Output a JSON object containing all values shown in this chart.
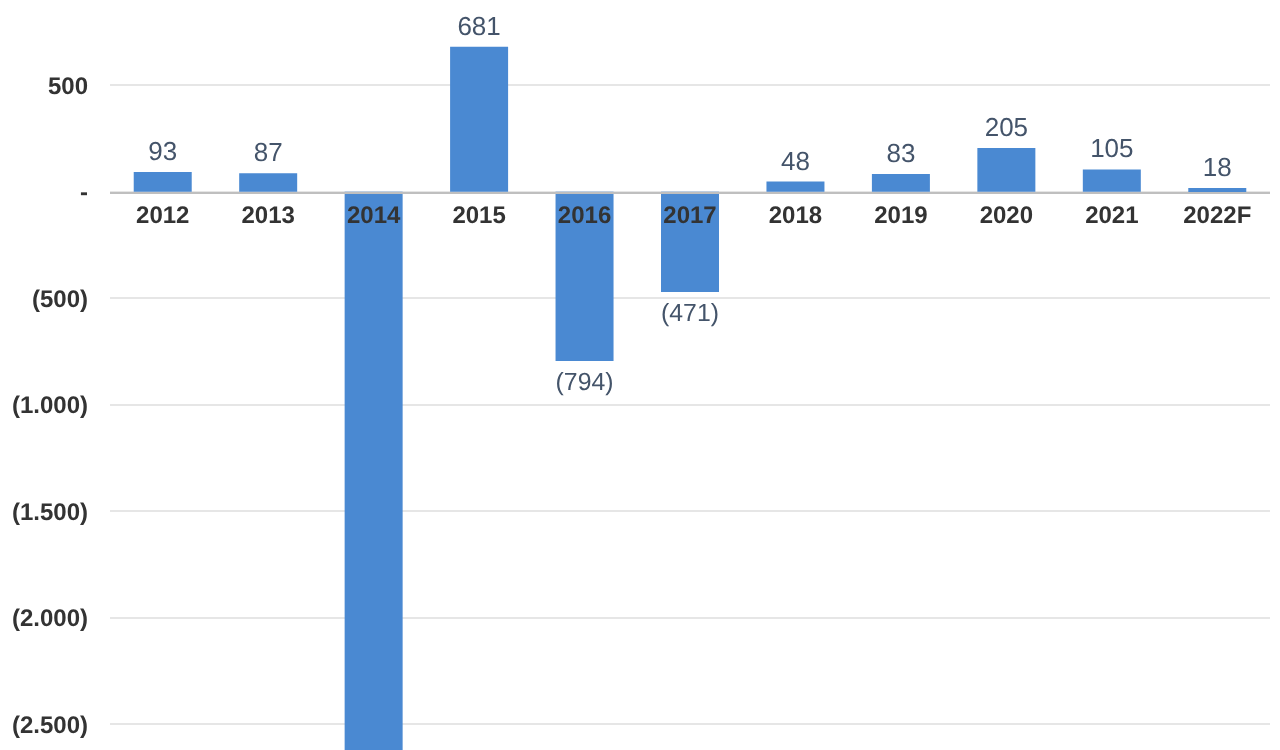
{
  "chart_data": {
    "type": "bar",
    "categories": [
      "2012",
      "2013",
      "2014",
      "2015",
      "2016",
      "2017",
      "2018",
      "2019",
      "2020",
      "2021",
      "2022F"
    ],
    "values": [
      93,
      87,
      -2620,
      681,
      -794,
      -471,
      48,
      83,
      205,
      105,
      18
    ],
    "value_labels": [
      "93",
      "87",
      null,
      "681",
      "(794)",
      "(471)",
      "48",
      "83",
      "205",
      "105",
      "18"
    ],
    "color": "#4a89d2",
    "ylim": [
      -2620,
      900
    ],
    "yticks": [
      500,
      {
        "value": 0,
        "label": "-"
      },
      {
        "value": -500,
        "label": "(500)"
      },
      {
        "value": -1000,
        "label": "(1.000)"
      },
      {
        "value": -1500,
        "label": "(1.500)"
      },
      {
        "value": -2000,
        "label": "(2.000)"
      },
      {
        "value": -2500,
        "label": "(2.500)"
      }
    ],
    "grid": "y",
    "legend": false
  }
}
